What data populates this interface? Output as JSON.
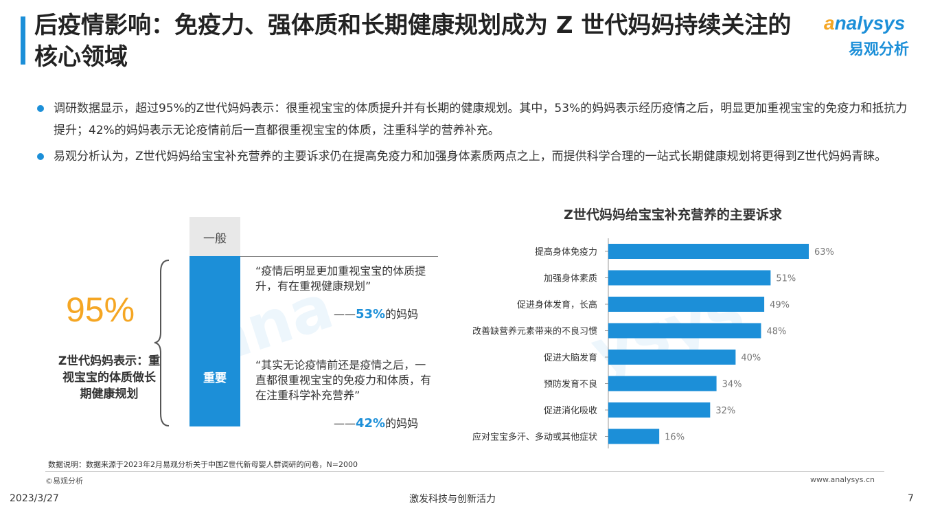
{
  "header": {
    "title": "后疫情影响：免疫力、强体质和长期健康规划成为 Z 世代妈妈持续关注的核心领域",
    "logo_en_prefix": "a",
    "logo_en_rest": "nalysys",
    "logo_cn": "易观分析"
  },
  "bullets": [
    "调研数据显示，超过95%的Z世代妈妈表示：很重视宝宝的体质提升并有长期的健康规划。其中，53%的妈妈表示经历疫情之后，明显更加重视宝宝的免疫力和抵抗力提升；42%的妈妈表示无论疫情前后一直都很重视宝宝的体质，注重科学的营养补充。",
    "易观分析认为，Z世代妈妈给宝宝补充营养的主要诉求仍在提高免疫力和加强身体素质两点之上，而提供科学合理的一站式长期健康规划将更得到Z世代妈妈青睐。"
  ],
  "left_panel": {
    "big_value": "95%",
    "desc": "Z世代妈妈表示：重视宝宝的体质做长期健康规划",
    "col_top_label": "一般",
    "col_main_label": "重要",
    "quote1": "“疫情后明显更加重视宝宝的体质提升，有在重视健康规划”",
    "quote1_dash": "——",
    "quote1_pct": "53%",
    "quote1_suffix": "的妈妈",
    "quote2": "“其实无论疫情前还是疫情之后，一直都很重视宝宝的免疫力和体质，有在注重科学补充营养”",
    "quote2_dash": "——",
    "quote2_pct": "42%",
    "quote2_suffix": "的妈妈"
  },
  "chart_data": {
    "type": "bar",
    "orientation": "horizontal",
    "title": "Z世代妈妈给宝宝补充营养的主要诉求",
    "categories": [
      "提高身体免疫力",
      "加强身体素质",
      "促进身体发育，长高",
      "改善缺营养元素带来的不良习惯",
      "促进大脑发育",
      "预防发育不良",
      "促进消化吸收",
      "应对宝宝多汗、多动或其他症状"
    ],
    "values": [
      63,
      51,
      49,
      48,
      40,
      34,
      32,
      16
    ],
    "value_labels": [
      "63%",
      "51%",
      "49%",
      "48%",
      "40%",
      "34%",
      "32%",
      "16%"
    ],
    "xlim": [
      0,
      63
    ],
    "color": "#1c8fd8",
    "grid": false,
    "legend": "none"
  },
  "footer": {
    "note": "数据说明：数据来源于2023年2月易观分析关于中国Z世代新母婴人群调研的问卷，N=2000",
    "copyright": "©易观分析",
    "site": "www.analysys.cn",
    "date": "2023/3/27",
    "slogan": "激发科技与创新活力",
    "page": "7"
  },
  "colors": {
    "accent": "#1c8fd8",
    "highlight": "#f5a623"
  }
}
